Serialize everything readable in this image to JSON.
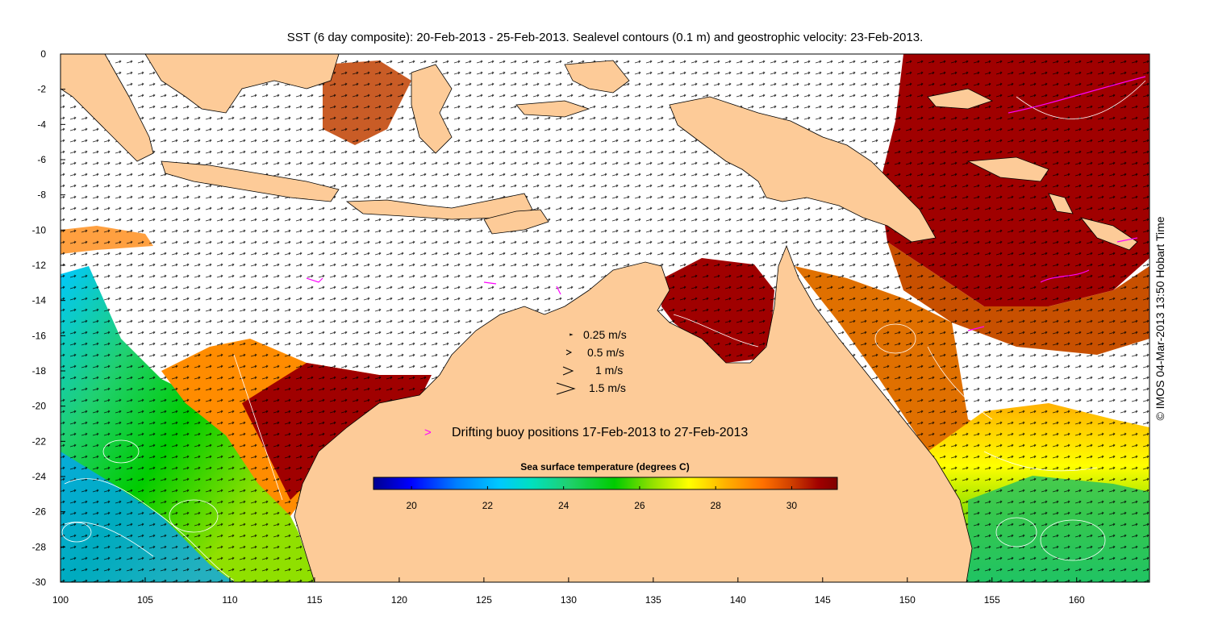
{
  "title": "SST (6 day composite): 20-Feb-2013 - 25-Feb-2013. Sealevel contours (0.1 m) and geostrophic velocity: 23-Feb-2013.",
  "credit": "© IMOS 04-Mar-2013 13:50 Hobart Time",
  "colors": {
    "land": "#fdcb98",
    "ocean_no_data": "#ffffff",
    "contour": "#ffffff",
    "vector": "#000000",
    "buoy": "#ff00ff"
  },
  "axes": {
    "x_ticks": [
      "100",
      "105",
      "110",
      "115",
      "120",
      "125",
      "130",
      "135",
      "140",
      "145",
      "150",
      "155",
      "160"
    ],
    "y_ticks": [
      "0",
      "-2",
      "-4",
      "-6",
      "-8",
      "-10",
      "-12",
      "-14",
      "-16",
      "-18",
      "-20",
      "-22",
      "-24",
      "-26",
      "-28",
      "-30"
    ],
    "lon_range": [
      100,
      164.3
    ],
    "lat_range": [
      -30,
      0
    ]
  },
  "velocity_legend": [
    "0.25 m/s",
    "0.5 m/s",
    "1 m/s",
    "1.5 m/s"
  ],
  "velocity_values": [
    0.25,
    0.5,
    1,
    1.5
  ],
  "buoy_legend": {
    "symbol": ">",
    "label": "Drifting buoy positions 17-Feb-2013 to 27-Feb-2013"
  },
  "colorbar": {
    "title": "Sea surface temperature (degrees C)",
    "ticks": [
      "20",
      "22",
      "24",
      "26",
      "28",
      "30"
    ],
    "range": [
      19,
      31.2
    ],
    "stops": [
      "#00008f",
      "#0000ff",
      "#0080ff",
      "#00c8ff",
      "#00e0c0",
      "#20d070",
      "#00cc00",
      "#90e000",
      "#ffff00",
      "#ffb000",
      "#ff7000",
      "#d04000",
      "#a00000",
      "#800000"
    ]
  }
}
